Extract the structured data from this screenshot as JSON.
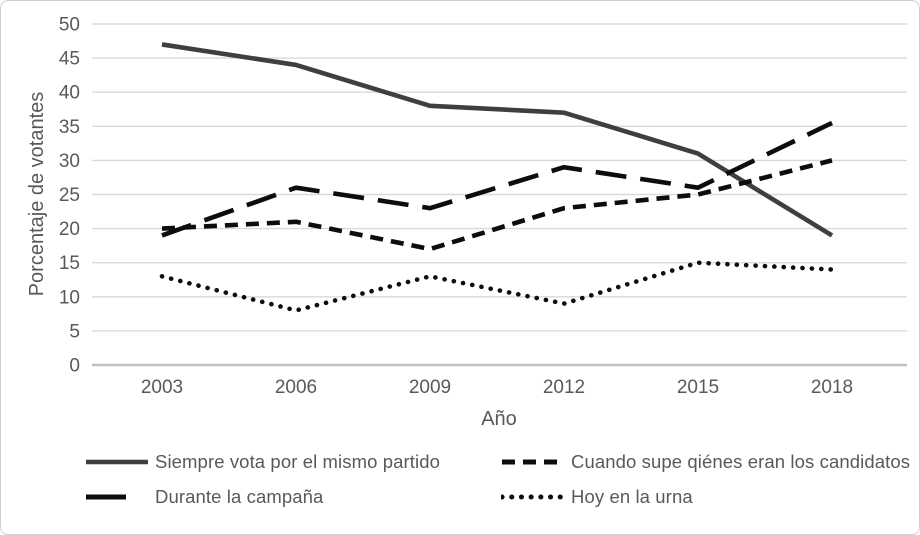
{
  "colors": {
    "solid_series": "#3f3f3f",
    "black_series": "#0d0d0d",
    "gridline": "#d9d9d9",
    "axis_line": "#bfbfbf",
    "text": "#595959",
    "frame_border": "#cfcfcf",
    "background": "#ffffff"
  },
  "chart_data": {
    "type": "line",
    "title": "",
    "xlabel": "Año",
    "ylabel": "Porcentaje de votantes",
    "x": [
      2003,
      2006,
      2009,
      2012,
      2015,
      2018
    ],
    "ylim": [
      0,
      50
    ],
    "yticks": [
      0,
      5,
      10,
      15,
      20,
      25,
      30,
      35,
      40,
      45,
      50
    ],
    "grid": true,
    "legend_position": "bottom",
    "series": [
      {
        "name": "Siempre vota por el mismo partido",
        "style": "solid",
        "color": "#3f3f3f",
        "values": [
          47,
          44,
          38,
          37,
          31,
          19
        ]
      },
      {
        "name": "Cuando supe qiénes eran los candidatos",
        "style": "dashed",
        "color": "#0d0d0d",
        "values": [
          20,
          21,
          17,
          23,
          25,
          30
        ]
      },
      {
        "name": "Durante la campaña",
        "style": "long-dash",
        "color": "#0d0d0d",
        "values": [
          19,
          26,
          23,
          29,
          26,
          35.5
        ]
      },
      {
        "name": "Hoy en la urna",
        "style": "dotted",
        "color": "#0d0d0d",
        "values": [
          13,
          8,
          13,
          9,
          15,
          14
        ]
      }
    ]
  }
}
